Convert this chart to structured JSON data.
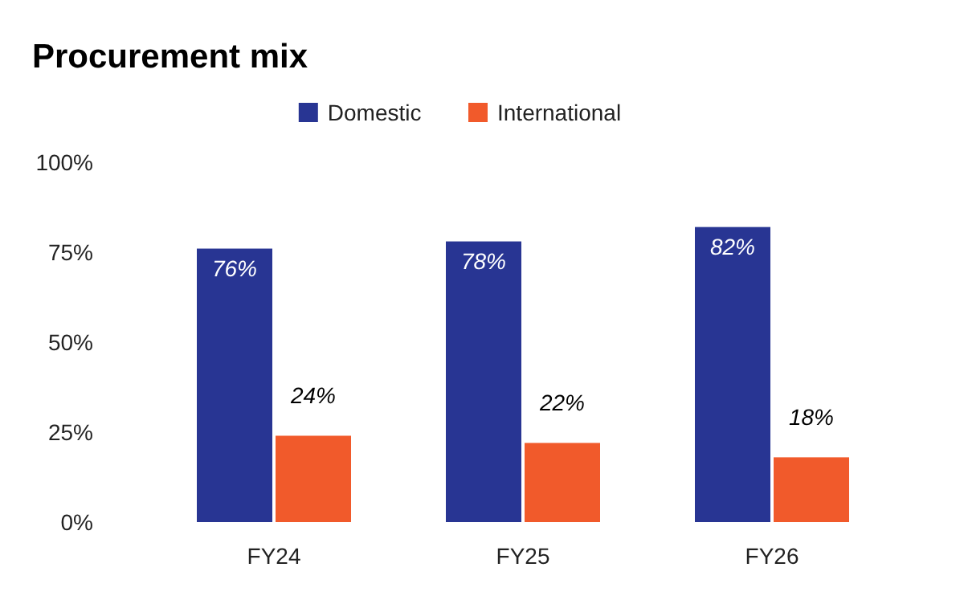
{
  "chart_data": {
    "type": "bar",
    "title": "Procurement mix",
    "categories": [
      "FY24",
      "FY25",
      "FY26"
    ],
    "series": [
      {
        "name": "Domestic",
        "color": "#283593",
        "values": [
          76,
          78,
          82
        ],
        "value_labels": [
          "76%",
          "78%",
          "82%"
        ]
      },
      {
        "name": "International",
        "color": "#f15a2b",
        "values": [
          24,
          22,
          18
        ],
        "value_labels": [
          "24%",
          "22%",
          "18%"
        ]
      }
    ],
    "ylim": [
      0,
      100
    ],
    "yticks": [
      {
        "value": 0,
        "label": "0%"
      },
      {
        "value": 25,
        "label": "25%"
      },
      {
        "value": 50,
        "label": "50%"
      },
      {
        "value": 75,
        "label": "75%"
      },
      {
        "value": 100,
        "label": "100%"
      }
    ],
    "legend": "top",
    "grid": false
  }
}
